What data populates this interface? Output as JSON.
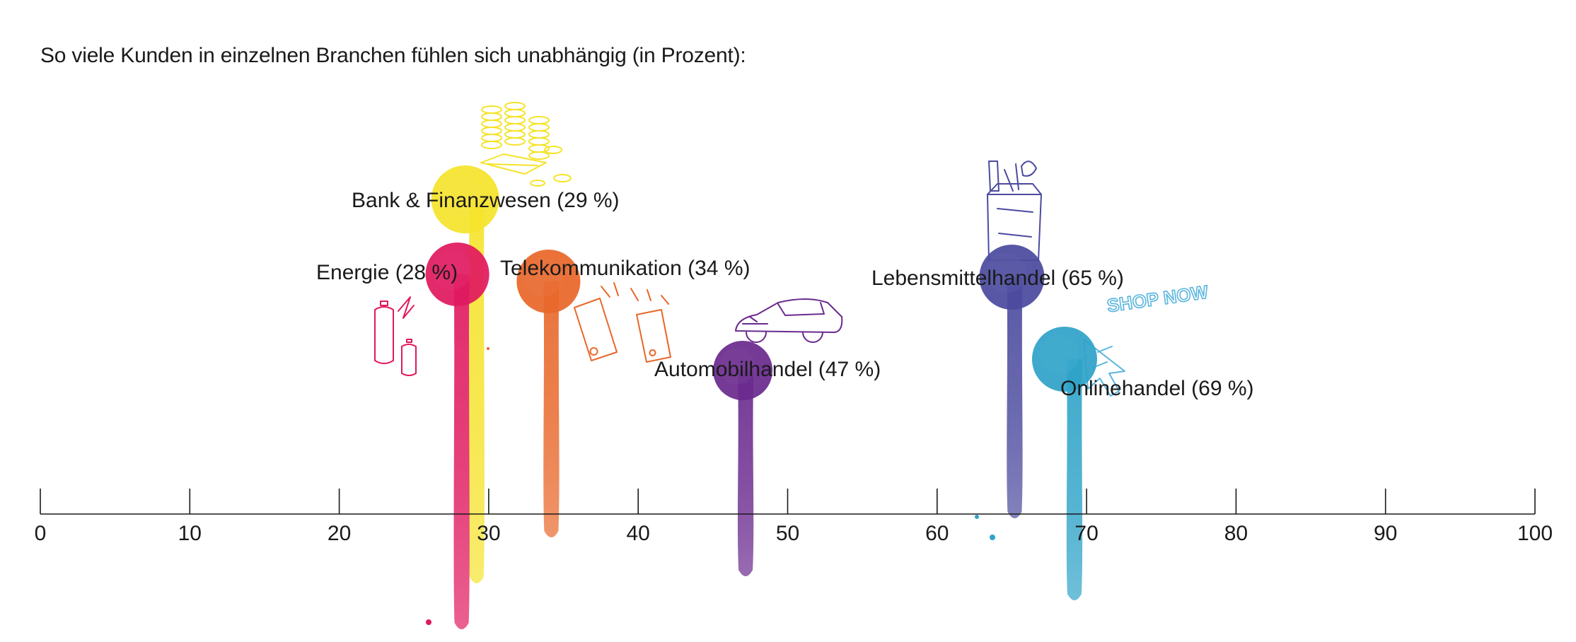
{
  "title": "So viele Kunden in einzelnen Branchen fühlen sich unabhängig (in Prozent):",
  "chart_data": {
    "type": "scatter",
    "title": "So viele Kunden in einzelnen Branchen fühlen sich unabhängig (in Prozent):",
    "xlabel": "",
    "ylabel": "",
    "xlim": [
      0,
      100
    ],
    "xticks": [
      0,
      10,
      20,
      30,
      40,
      50,
      60,
      70,
      80,
      90,
      100
    ],
    "grid": false,
    "legend": "none",
    "points": [
      {
        "label": "Energie (28 %)",
        "category": "Energie",
        "value": 28,
        "color": "#e0195f",
        "icon": "battery-icon"
      },
      {
        "label": "Bank & Finanzwesen (29 %)",
        "category": "Bank & Finanzwesen",
        "value": 29,
        "color": "#f5e32c",
        "icon": "coins-icon"
      },
      {
        "label": "Telekommunikation (34 %)",
        "category": "Telekommunikation",
        "value": 34,
        "color": "#e8672a",
        "icon": "phone-icon"
      },
      {
        "label": "Automobilhandel (47 %)",
        "category": "Automobilhandel",
        "value": 47,
        "color": "#6a2a8e",
        "icon": "car-icon"
      },
      {
        "label": "Lebensmittelhandel (65 %)",
        "category": "Lebensmittelhandel",
        "value": 65,
        "color": "#4b4a9e",
        "icon": "grocery-bag-icon"
      },
      {
        "label": "Onlinehandel (69 %)",
        "category": "Onlinehandel",
        "value": 69,
        "color": "#2fa3c8",
        "icon": "shop-now-cursor-icon",
        "icon_text": "SHOP NOW"
      }
    ]
  }
}
